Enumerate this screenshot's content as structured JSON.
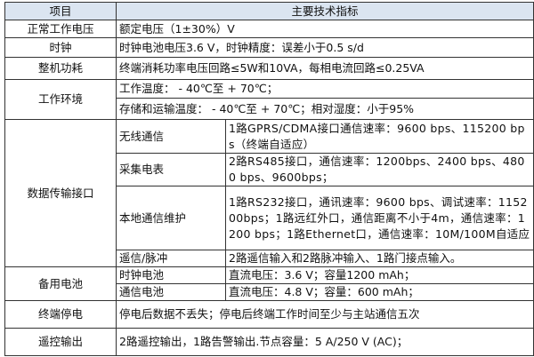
{
  "header": {
    "item": "项目",
    "spec": "主要技术指标"
  },
  "rows": {
    "voltage": {
      "label": "正常工作电压",
      "value": "额定电压（1±30%）V"
    },
    "clock": {
      "label": "时钟",
      "value": "时钟电池电压3.6 V，时钟精度：误差小于0.5 s/d"
    },
    "power": {
      "label": "整机功耗",
      "value": "终端消耗功率电压回路≤5W和10VA，每相电流回路≤0.25VA"
    },
    "env": {
      "label": "工作环境",
      "line1": "工作温度： - 40℃至 + 70℃；",
      "line2": "存储和运输温度： - 40℃至 + 70℃；相对湿度：小于95%"
    },
    "data_if": {
      "label": "数据传输接口",
      "items": [
        {
          "label": "无线通信",
          "value": "1路GPRS/CDMA接口通信速率：9600 bps、115200 bps（终端自适应）"
        },
        {
          "label": "采集电表",
          "value": "2路RS485接口，通信速率：1200bps、2400 bps、4800 bps、9600bps；"
        },
        {
          "label": "本地通信维护",
          "value": "1路RS232接口，通讯速率：9600 bps、调试速率：115200bps；1路远红外口，通信距离不小于4m，通信速率：1200 bps；1路Ethernet口，通信速率：10M/100M自适应"
        },
        {
          "label": "遥信/脉冲",
          "value": "2路遥信输入和2路脉冲输入、1路门接点输入。"
        }
      ]
    },
    "battery": {
      "label": "备用电池",
      "items": [
        {
          "label": "时钟电池",
          "value": "直流电压：3.6 V；容量1200 mAh；"
        },
        {
          "label": "通信电池",
          "value": "直流电压：4.8 V；容量：600 mAh；"
        }
      ]
    },
    "outage": {
      "label": "终端停电",
      "value": "停电后数据不丢失；停电后终端工作时间至少与主站通信五次"
    },
    "remote": {
      "label": "遥控输出",
      "value": "2路遥控输出，1路告警输出.节点容量：5 A/250 V (AC)；"
    }
  }
}
